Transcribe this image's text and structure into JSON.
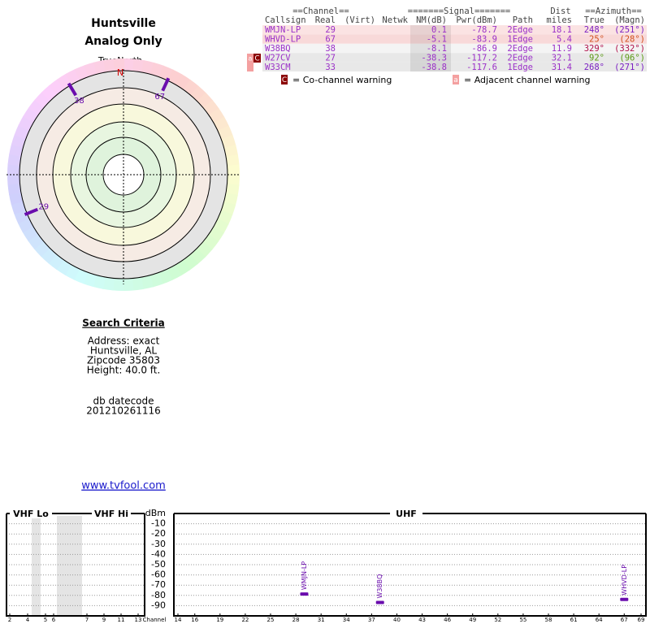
{
  "header": {
    "title": "Huntsville",
    "subtitle": "Analog Only"
  },
  "polar": {
    "north_caption": "TrueNorth",
    "north_marker": "N",
    "mark_color": "#6a0dad",
    "stations": [
      {
        "label": "38",
        "azimuth": 329
      },
      {
        "label": "67",
        "azimuth": 25
      },
      {
        "label": "29",
        "azimuth": 248
      }
    ]
  },
  "table": {
    "group_headers": {
      "channel": "==Channel==",
      "signal": "=======Signal=======",
      "dist": "Dist",
      "azimuth": "==Azimuth=="
    },
    "columns": {
      "callsign": "Callsign",
      "real": "Real",
      "virt": "(Virt)",
      "netwk": "Netwk",
      "nm": "NM(dB)",
      "pwr": "Pwr(dBm)",
      "path": "Path",
      "dist": "miles",
      "az_true": "True",
      "az_magn": "(Magn)"
    },
    "rows": [
      {
        "callsign": "WMJN-LP",
        "real": "29",
        "nm": "0.1",
        "pwr": "-78.7",
        "path": "2Edge",
        "dist": "18.1",
        "az_true": "248°",
        "az_magn": "(251°)",
        "bg": "#fbe3e3",
        "az_color": "#7a1fc2"
      },
      {
        "callsign": "WHVD-LP",
        "real": "67",
        "nm": "-5.1",
        "pwr": "-83.9",
        "path": "1Edge",
        "dist": "5.4",
        "az_true": "25°",
        "az_magn": "(28°)",
        "bg": "#f8d9d9",
        "az_color": "#d2501e"
      },
      {
        "callsign": "W38BQ",
        "real": "38",
        "nm": "-8.1",
        "pwr": "-86.9",
        "path": "2Edge",
        "dist": "11.9",
        "az_true": "329°",
        "az_magn": "(332°)",
        "bg": "#f4f4f4",
        "az_color": "#b0104a"
      },
      {
        "callsign": "W27CV",
        "real": "27",
        "nm": "-38.3",
        "pwr": "-117.2",
        "path": "2Edge",
        "dist": "32.1",
        "az_true": "92°",
        "az_magn": "(96°)",
        "bg": "#e8e8e8",
        "az_color": "#5a9a14"
      },
      {
        "callsign": "W33CM",
        "real": "33",
        "nm": "-38.8",
        "pwr": "-117.6",
        "path": "1Edge",
        "dist": "31.4",
        "az_true": "268°",
        "az_magn": "(271°)",
        "bg": "#e8e8e8",
        "az_color": "#7a1fc2"
      }
    ],
    "text_color": "#9b30c8"
  },
  "legend": {
    "co_icon": "C",
    "co_text": "= Co-channel warning",
    "adj_icon": "a",
    "adj_text": "= Adjacent channel warning"
  },
  "search": {
    "heading": "Search Criteria",
    "lines": [
      "Address: exact",
      "Huntsville, AL",
      "Zipcode 35803",
      "Height: 40.0 ft."
    ],
    "db_label": "db datecode",
    "db_value": "201210261116",
    "link": "www.tvfool.com"
  },
  "spectrum": {
    "sections": {
      "vhf_lo": "VHF Lo",
      "vhf_hi": "VHF Hi",
      "uhf": "UHF"
    },
    "y_label": "dBm",
    "x_label": "Channel",
    "ylim": [
      -100,
      0
    ],
    "yticks": [
      -10,
      -20,
      -30,
      -40,
      -50,
      -60,
      -70,
      -80,
      -90
    ],
    "vhf_ticks": [
      2,
      4,
      5,
      6,
      7,
      9,
      11,
      13
    ],
    "uhf_xlim": [
      14,
      69
    ],
    "uhf_ticks": [
      14,
      16,
      19,
      22,
      25,
      28,
      31,
      34,
      37,
      40,
      43,
      46,
      49,
      52,
      55,
      58,
      61,
      64,
      67,
      69
    ],
    "color": "#6a0dad",
    "stations": [
      {
        "label": "WMJN-LP",
        "channel": 29,
        "power": -78.7
      },
      {
        "label": "W38BQ",
        "channel": 38,
        "power": -86.9
      },
      {
        "label": "WHVD-LP",
        "channel": 67,
        "power": -83.9
      }
    ]
  }
}
